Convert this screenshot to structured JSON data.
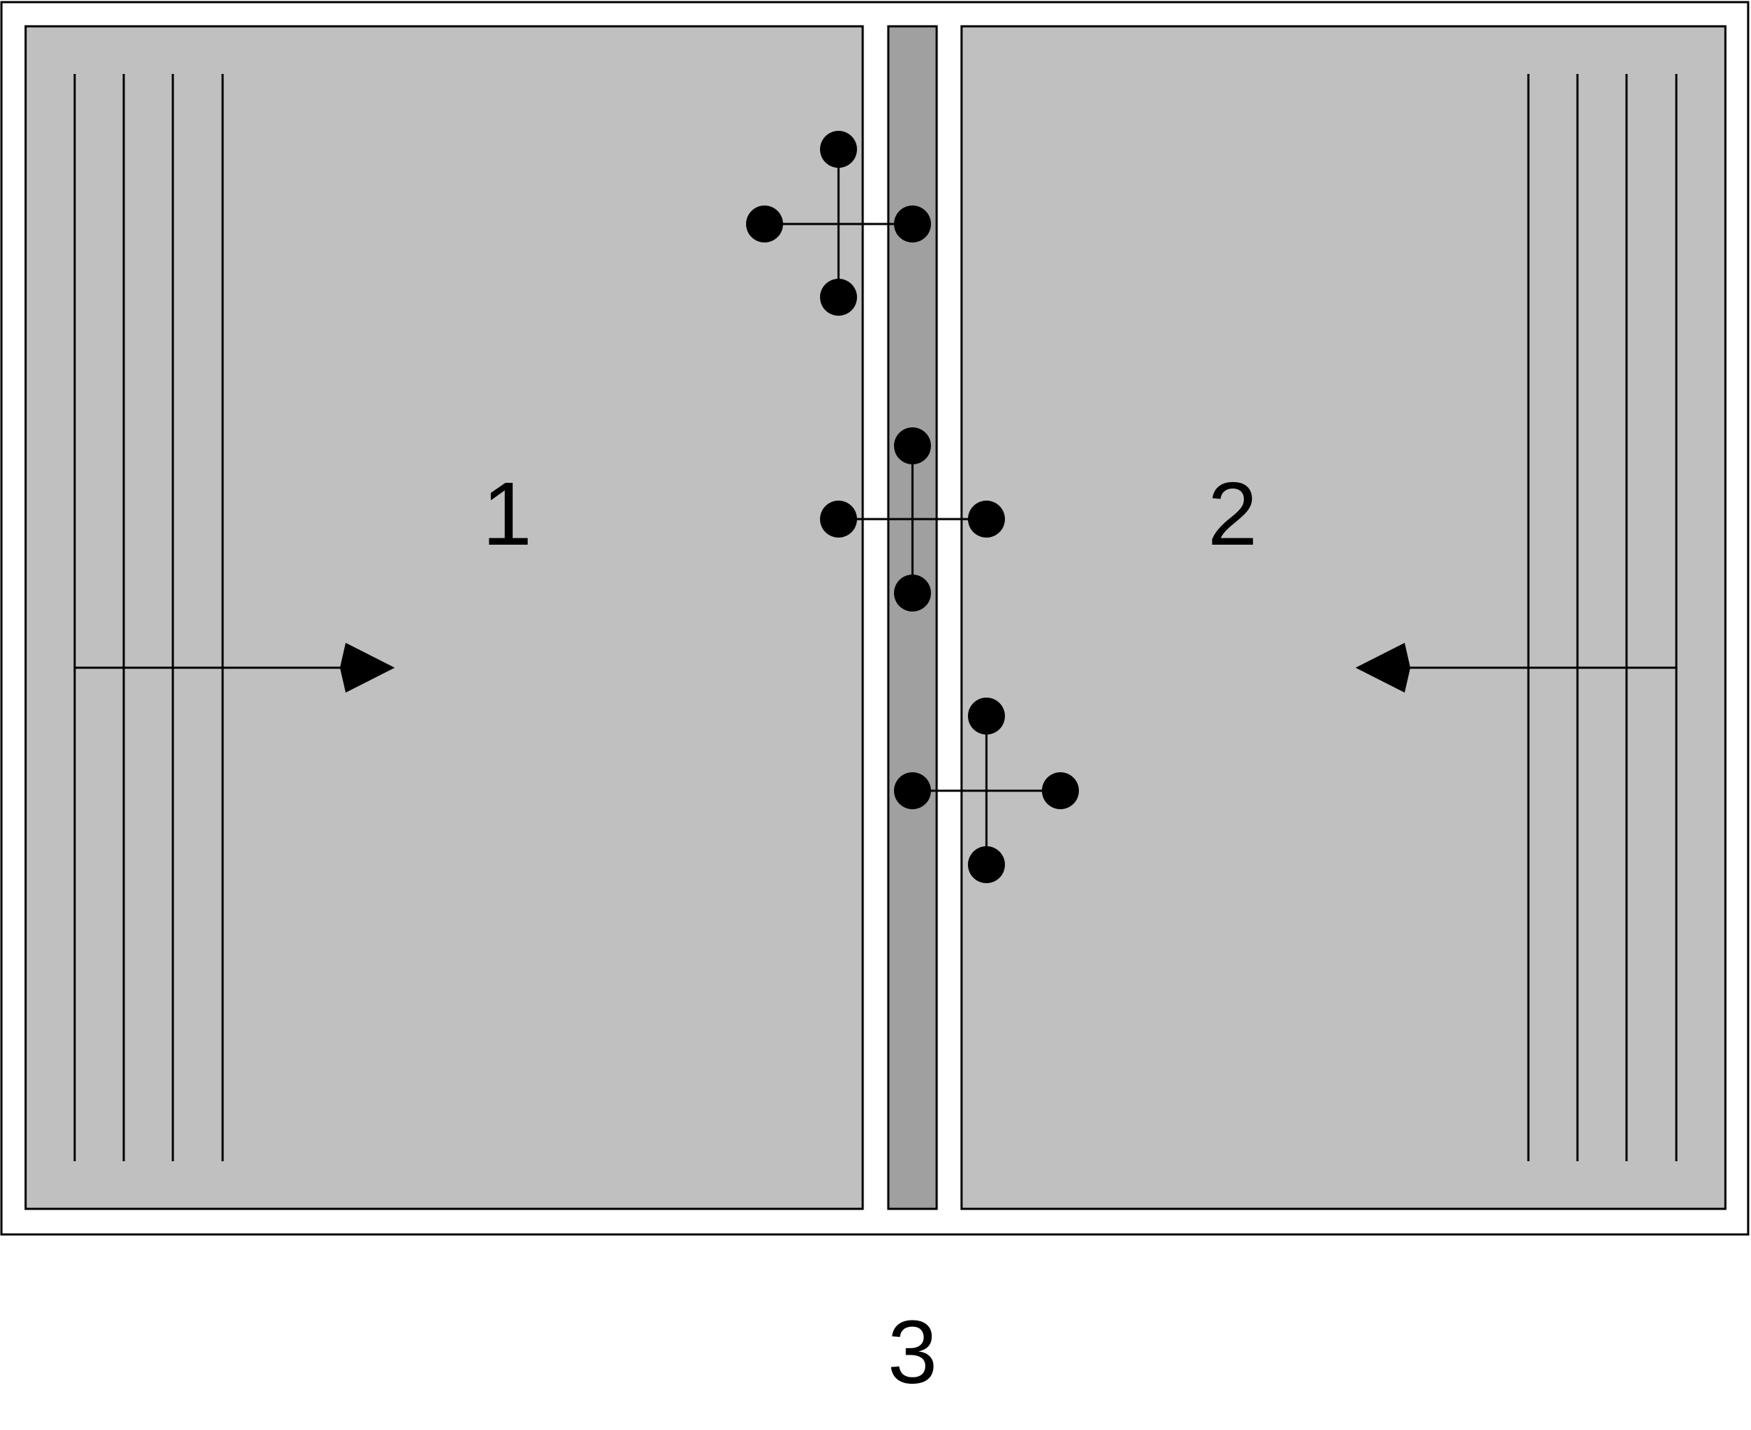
{
  "labels": {
    "left_panel": "1",
    "right_panel": "2",
    "overall": "3"
  },
  "colors": {
    "panel_fill": "#c0c0c0",
    "strip_fill": "#a0a0a0",
    "line": "#000000",
    "background": "#ffffff"
  }
}
